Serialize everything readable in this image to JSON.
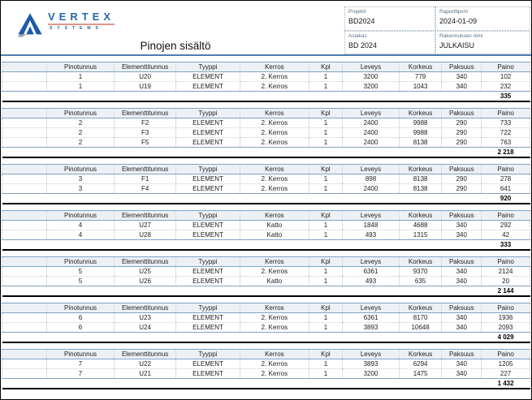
{
  "logo": {
    "brand": "VERTEX",
    "sub": "SYSTEMS"
  },
  "title": "Pinojen sisältö",
  "info": {
    "fields": [
      {
        "label": "Projekti",
        "value": "BD2024"
      },
      {
        "label": "Raporttipvm",
        "value": "2024-01-09"
      },
      {
        "label": "Asiakas",
        "value": "BD 2024"
      },
      {
        "label": "Rakennuksen nimi",
        "value": "JULKAISU"
      }
    ]
  },
  "table": {
    "headers": [
      "",
      "Pinotunnus",
      "Elementtitunnus",
      "Tyyppi",
      "Kerros",
      "Kpl",
      "Leveys",
      "Korkeus",
      "Paksuus",
      "Paino"
    ],
    "sections": [
      {
        "rows": [
          [
            "1",
            "U20",
            "ELEMENT",
            "2. Kerros",
            "1",
            "3200",
            "779",
            "340",
            "102"
          ],
          [
            "1",
            "U19",
            "ELEMENT",
            "2. Kerros",
            "1",
            "3200",
            "1043",
            "340",
            "232"
          ]
        ],
        "total": "335"
      },
      {
        "rows": [
          [
            "2",
            "F2",
            "ELEMENT",
            "2. Kerros",
            "1",
            "2400",
            "9988",
            "290",
            "733"
          ],
          [
            "2",
            "F3",
            "ELEMENT",
            "2. Kerros",
            "1",
            "2400",
            "9988",
            "290",
            "722"
          ],
          [
            "2",
            "F5",
            "ELEMENT",
            "2. Kerros",
            "1",
            "2400",
            "8138",
            "290",
            "763"
          ]
        ],
        "total": "2 218"
      },
      {
        "rows": [
          [
            "3",
            "F1",
            "ELEMENT",
            "2. Kerros",
            "1",
            "898",
            "8138",
            "290",
            "278"
          ],
          [
            "3",
            "F4",
            "ELEMENT",
            "2. Kerros",
            "1",
            "2400",
            "8138",
            "290",
            "641"
          ]
        ],
        "total": "920"
      },
      {
        "rows": [
          [
            "4",
            "U27",
            "ELEMENT",
            "Katto",
            "1",
            "1848",
            "4688",
            "340",
            "292"
          ],
          [
            "4",
            "U28",
            "ELEMENT",
            "Katto",
            "1",
            "493",
            "1315",
            "340",
            "42"
          ]
        ],
        "total": "333"
      },
      {
        "rows": [
          [
            "5",
            "U25",
            "ELEMENT",
            "2. Kerros",
            "1",
            "6361",
            "9370",
            "340",
            "2124"
          ],
          [
            "5",
            "U26",
            "ELEMENT",
            "Katto",
            "1",
            "493",
            "635",
            "340",
            "20"
          ]
        ],
        "total": "2 144"
      },
      {
        "rows": [
          [
            "6",
            "U23",
            "ELEMENT",
            "2. Kerros",
            "1",
            "6361",
            "8170",
            "340",
            "1936"
          ],
          [
            "6",
            "U24",
            "ELEMENT",
            "2. Kerros",
            "1",
            "3893",
            "10648",
            "340",
            "2093"
          ]
        ],
        "total": "4 029"
      },
      {
        "rows": [
          [
            "7",
            "U22",
            "ELEMENT",
            "2. Kerros",
            "1",
            "3893",
            "6294",
            "340",
            "1205"
          ],
          [
            "7",
            "U21",
            "ELEMENT",
            "2. Kerros",
            "1",
            "3200",
            "1475",
            "340",
            "227"
          ]
        ],
        "total": "1 432"
      }
    ]
  },
  "colors": {
    "accent_blue": "#4d7dad",
    "table_border_blue": "#7fa3c8",
    "table_header_bg": "#edf1f5",
    "logo_blue": "#2767ab",
    "logo_underline_red": "#e4928c"
  }
}
